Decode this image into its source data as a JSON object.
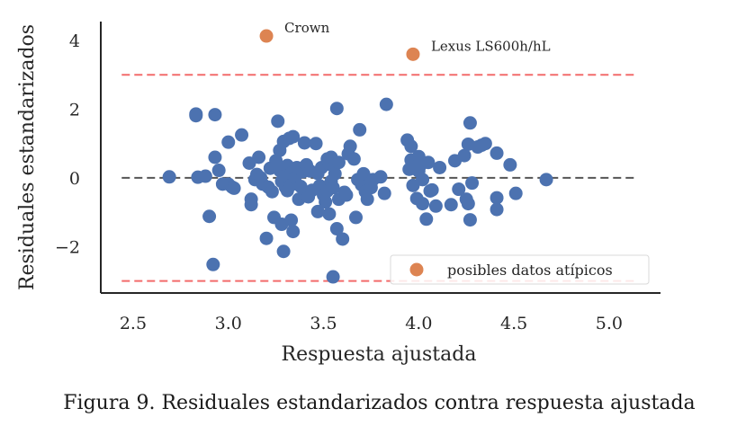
{
  "caption": "Figura 9. Residuales estandarizados contra respuesta ajustada",
  "chart_data": {
    "type": "scatter",
    "xlabel": "Respuesta ajustada",
    "ylabel": "Residuales estandarizados",
    "xlim": [
      2.33,
      5.27
    ],
    "ylim": [
      -3.35,
      4.55
    ],
    "xticks": [
      2.5,
      3.0,
      3.5,
      4.0,
      4.5,
      5.0
    ],
    "xtick_labels": [
      "2.5",
      "3.0",
      "3.5",
      "4.0",
      "4.5",
      "5.0"
    ],
    "yticks": [
      -2,
      0,
      2,
      4
    ],
    "ytick_labels": [
      "−2",
      "0",
      "2",
      "4"
    ],
    "grid": false,
    "legend_position": "lower-right",
    "colors": {
      "points": "#4c72b0",
      "outliers": "#dd8452",
      "bounds": "#f26b6b",
      "zero_line": "#555555"
    },
    "reference_lines": [
      {
        "y": 3,
        "style": "dashed",
        "color": "#f26b6b"
      },
      {
        "y": -3,
        "style": "dashed",
        "color": "#f26b6b"
      },
      {
        "y": 0,
        "style": "dashed",
        "color": "#555555"
      }
    ],
    "reference_line_x_range": [
      2.44,
      5.15
    ],
    "series": [
      {
        "role": "residuals",
        "points": [
          [
            2.69,
            0.03
          ],
          [
            2.83,
            1.86
          ],
          [
            2.83,
            1.81
          ],
          [
            2.84,
            0.02
          ],
          [
            2.88,
            0.05
          ],
          [
            2.9,
            -1.12
          ],
          [
            2.92,
            -2.52
          ],
          [
            2.93,
            1.84
          ],
          [
            2.93,
            0.6
          ],
          [
            2.95,
            0.22
          ],
          [
            2.97,
            -0.18
          ],
          [
            3.0,
            -0.18
          ],
          [
            3.0,
            1.04
          ],
          [
            3.02,
            -0.27
          ],
          [
            3.03,
            -0.3
          ],
          [
            3.07,
            1.25
          ],
          [
            3.11,
            0.43
          ],
          [
            3.12,
            -0.62
          ],
          [
            3.12,
            -0.78
          ],
          [
            3.14,
            -0.05
          ],
          [
            3.15,
            0.1
          ],
          [
            3.16,
            0.6
          ],
          [
            3.17,
            0.0
          ],
          [
            3.18,
            -0.18
          ],
          [
            3.2,
            -1.76
          ],
          [
            3.21,
            -0.27
          ],
          [
            3.22,
            0.28
          ],
          [
            3.23,
            -0.4
          ],
          [
            3.24,
            -1.15
          ],
          [
            3.25,
            0.5
          ],
          [
            3.25,
            0.35
          ],
          [
            3.26,
            1.65
          ],
          [
            3.27,
            0.22
          ],
          [
            3.27,
            0.8
          ],
          [
            3.28,
            -0.1
          ],
          [
            3.28,
            -1.35
          ],
          [
            3.29,
            -2.14
          ],
          [
            3.29,
            1.06
          ],
          [
            3.3,
            -0.27
          ],
          [
            3.3,
            0.06
          ],
          [
            3.31,
            0.36
          ],
          [
            3.31,
            -0.37
          ],
          [
            3.32,
            1.15
          ],
          [
            3.33,
            -0.2
          ],
          [
            3.33,
            -1.23
          ],
          [
            3.33,
            0.14
          ],
          [
            3.34,
            1.2
          ],
          [
            3.34,
            -1.56
          ],
          [
            3.35,
            0.01
          ],
          [
            3.36,
            0.3
          ],
          [
            3.37,
            -0.62
          ],
          [
            3.38,
            -0.25
          ],
          [
            3.39,
            0.18
          ],
          [
            3.4,
            -0.48
          ],
          [
            3.4,
            1.02
          ],
          [
            3.41,
            0.38
          ],
          [
            3.42,
            -0.55
          ],
          [
            3.43,
            0.2
          ],
          [
            3.44,
            -0.36
          ],
          [
            3.46,
            1.0
          ],
          [
            3.47,
            -0.98
          ],
          [
            3.47,
            0.13
          ],
          [
            3.48,
            -0.23
          ],
          [
            3.49,
            0.3
          ],
          [
            3.5,
            -0.5
          ],
          [
            3.51,
            -0.7
          ],
          [
            3.52,
            0.55
          ],
          [
            3.52,
            -0.38
          ],
          [
            3.53,
            0.4
          ],
          [
            3.53,
            -1.05
          ],
          [
            3.54,
            -0.1
          ],
          [
            3.54,
            0.6
          ],
          [
            3.55,
            -2.88
          ],
          [
            3.55,
            -0.28
          ],
          [
            3.56,
            0.12
          ],
          [
            3.57,
            -1.48
          ],
          [
            3.57,
            2.02
          ],
          [
            3.58,
            0.45
          ],
          [
            3.58,
            -0.62
          ],
          [
            3.6,
            -1.78
          ],
          [
            3.61,
            -0.42
          ],
          [
            3.62,
            -0.5
          ],
          [
            3.63,
            0.7
          ],
          [
            3.64,
            0.92
          ],
          [
            3.66,
            0.55
          ],
          [
            3.67,
            -1.15
          ],
          [
            3.68,
            -0.05
          ],
          [
            3.69,
            1.4
          ],
          [
            3.7,
            -0.2
          ],
          [
            3.71,
            0.12
          ],
          [
            3.72,
            -0.4
          ],
          [
            3.73,
            -0.62
          ],
          [
            3.74,
            -0.2
          ],
          [
            3.75,
            -0.28
          ],
          [
            3.76,
            -0.05
          ],
          [
            3.8,
            0.03
          ],
          [
            3.82,
            -0.45
          ],
          [
            3.83,
            2.14
          ],
          [
            3.94,
            1.1
          ],
          [
            3.95,
            0.25
          ],
          [
            3.96,
            0.92
          ],
          [
            3.96,
            0.52
          ],
          [
            3.97,
            -0.22
          ],
          [
            3.98,
            0.27
          ],
          [
            3.99,
            -0.6
          ],
          [
            4.0,
            0.62
          ],
          [
            4.0,
            0.2
          ],
          [
            4.01,
            0.38
          ],
          [
            4.02,
            -0.05
          ],
          [
            4.02,
            -0.75
          ],
          [
            4.04,
            -1.2
          ],
          [
            4.05,
            0.45
          ],
          [
            4.06,
            -0.38
          ],
          [
            4.07,
            -0.35
          ],
          [
            4.09,
            -0.82
          ],
          [
            4.11,
            0.3
          ],
          [
            4.17,
            -0.78
          ],
          [
            4.19,
            0.5
          ],
          [
            4.21,
            -0.33
          ],
          [
            4.24,
            0.65
          ],
          [
            4.25,
            -0.62
          ],
          [
            4.26,
            -0.75
          ],
          [
            4.26,
            0.98
          ],
          [
            4.27,
            1.6
          ],
          [
            4.27,
            -1.22
          ],
          [
            4.28,
            -0.15
          ],
          [
            4.31,
            0.9
          ],
          [
            4.33,
            0.95
          ],
          [
            4.35,
            1.0
          ],
          [
            4.41,
            0.72
          ],
          [
            4.41,
            -0.58
          ],
          [
            4.41,
            -0.92
          ],
          [
            4.48,
            0.38
          ],
          [
            4.51,
            -0.45
          ],
          [
            4.67,
            -0.05
          ]
        ]
      },
      {
        "role": "outliers",
        "name": "posibles datos atípicos",
        "points": [
          [
            3.2,
            4.13
          ],
          [
            3.97,
            3.6
          ]
        ],
        "labels": [
          "Crown",
          "Lexus LS600h/hL"
        ]
      }
    ]
  }
}
